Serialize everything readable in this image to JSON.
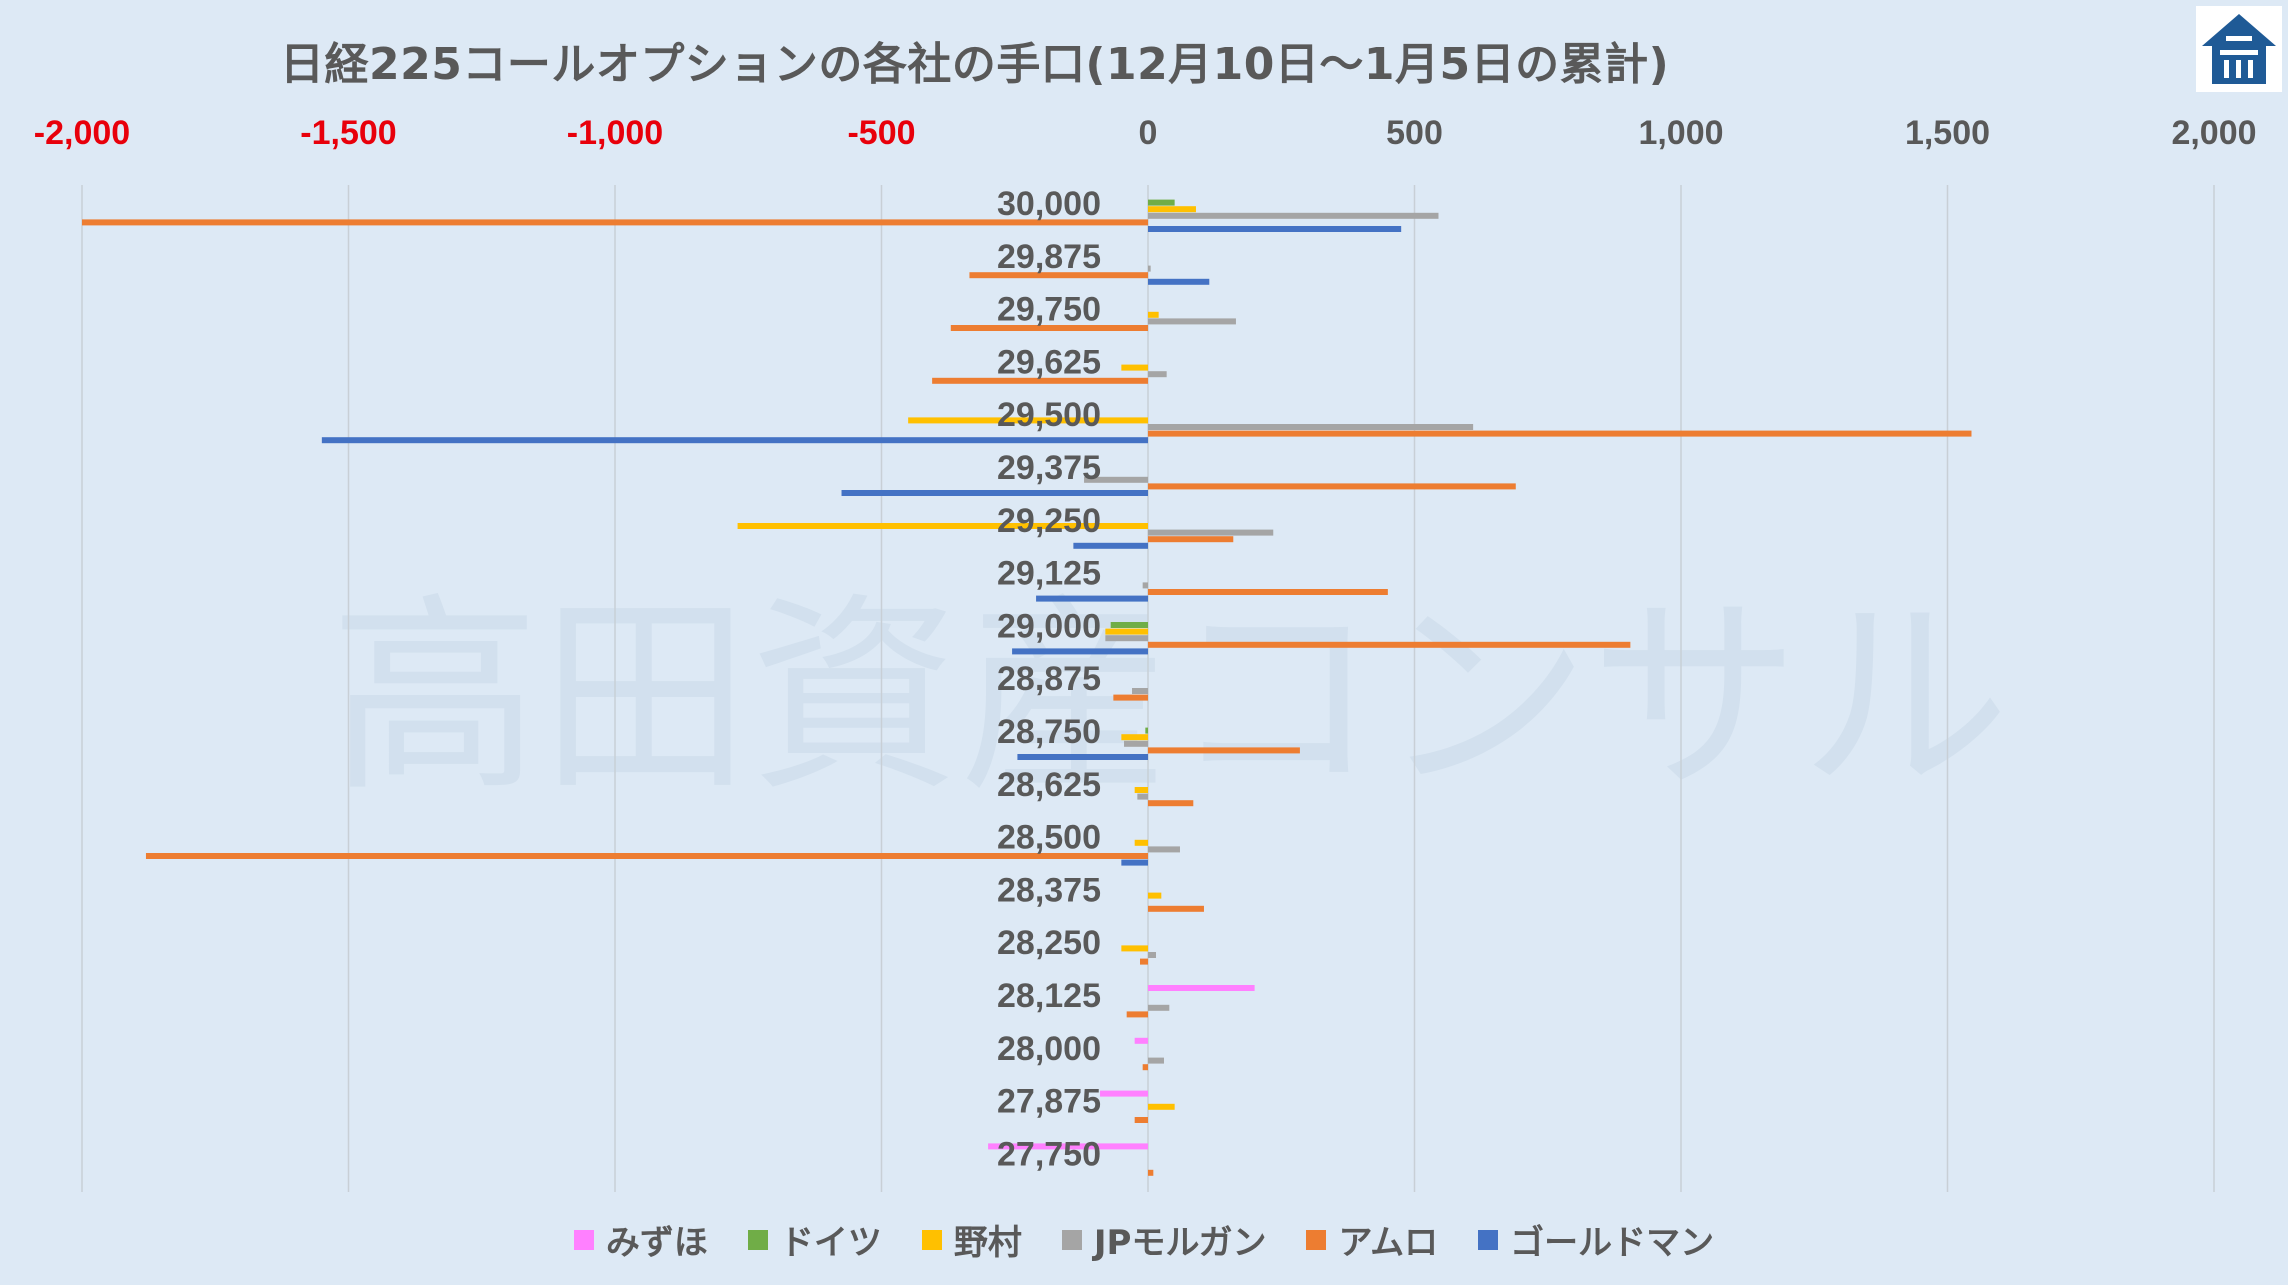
{
  "chart_data": {
    "type": "bar",
    "orientation": "horizontal",
    "title": "日経225コールオプションの各社の手口(12月10日～1月5日の累計)",
    "watermark": "高田資産コンサル",
    "x_ticks": [
      "-2,000",
      "-1,500",
      "-1,000",
      "-500",
      "0",
      "500",
      "1,000",
      "1,500",
      "2,000"
    ],
    "xlim": [
      -2000,
      2000
    ],
    "negative_tick_color": "#e8000b",
    "categories": [
      "30,000",
      "29,875",
      "29,750",
      "29,625",
      "29,500",
      "29,375",
      "29,250",
      "29,125",
      "29,000",
      "28,875",
      "28,750",
      "28,625",
      "28,500",
      "28,375",
      "28,250",
      "28,125",
      "28,000",
      "27,875",
      "27,750"
    ],
    "series": [
      {
        "name": "みずほ",
        "color": "#ff80ff",
        "values": [
          0,
          0,
          0,
          0,
          0,
          0,
          0,
          0,
          0,
          0,
          0,
          0,
          0,
          0,
          0,
          200,
          -25,
          -90,
          -300
        ]
      },
      {
        "name": "ドイツ",
        "color": "#70ad47",
        "values": [
          50,
          0,
          0,
          0,
          0,
          0,
          0,
          0,
          -70,
          0,
          -5,
          0,
          0,
          0,
          0,
          0,
          0,
          0,
          0
        ]
      },
      {
        "name": "野村",
        "color": "#ffc000",
        "values": [
          90,
          0,
          20,
          -50,
          -450,
          0,
          -770,
          0,
          -80,
          0,
          -50,
          -25,
          -25,
          25,
          -50,
          0,
          0,
          50,
          0
        ]
      },
      {
        "name": "JPモルガン",
        "color": "#a5a5a5",
        "values": [
          545,
          5,
          165,
          35,
          610,
          -120,
          235,
          -10,
          -80,
          -30,
          -45,
          -20,
          60,
          0,
          15,
          40,
          30,
          0,
          0
        ]
      },
      {
        "name": "アムロ",
        "color": "#ed7d31",
        "values": [
          -2000,
          -335,
          -370,
          -405,
          1545,
          690,
          160,
          450,
          905,
          -65,
          285,
          85,
          -1880,
          105,
          -15,
          -40,
          -10,
          -25,
          10
        ]
      },
      {
        "name": "ゴールドマン",
        "color": "#4472c4",
        "values": [
          475,
          115,
          0,
          0,
          -1550,
          -575,
          -140,
          -210,
          -255,
          0,
          -245,
          0,
          -50,
          0,
          0,
          0,
          0,
          0,
          0
        ]
      }
    ]
  }
}
